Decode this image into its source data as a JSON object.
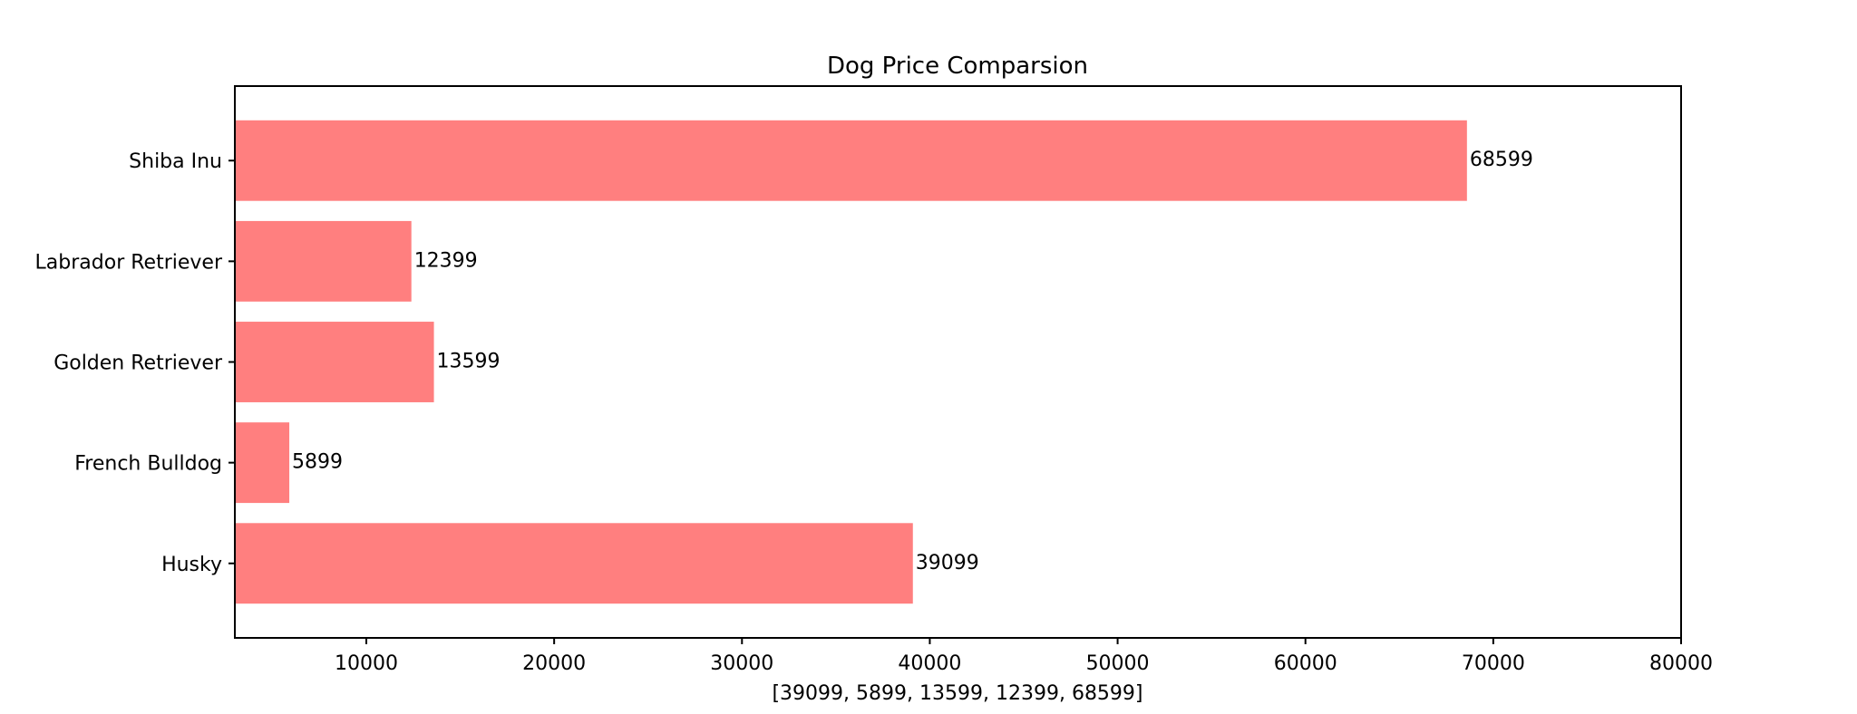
{
  "chart_data": {
    "type": "bar",
    "orientation": "horizontal",
    "title": "Dog Price Comparsion",
    "xlabel": "[39099, 5899, 13599, 12399, 68599]",
    "ylabel": "",
    "categories": [
      "Husky",
      "French Bulldog",
      "Golden Retriever",
      "Labrador Retriever",
      "Shiba Inu"
    ],
    "values": [
      39099,
      5899,
      13599,
      12399,
      68599
    ],
    "data_labels": [
      "39099",
      "5899",
      "13599",
      "12399",
      "68599"
    ],
    "xlim": [
      3000,
      80000
    ],
    "xticks": [
      10000,
      20000,
      30000,
      40000,
      50000,
      60000,
      70000,
      80000
    ],
    "xtick_labels": [
      "10000",
      "20000",
      "30000",
      "40000",
      "50000",
      "60000",
      "70000",
      "80000"
    ],
    "grid": false,
    "bar_color": "#ff7f7f",
    "edge_color": "#000000"
  }
}
